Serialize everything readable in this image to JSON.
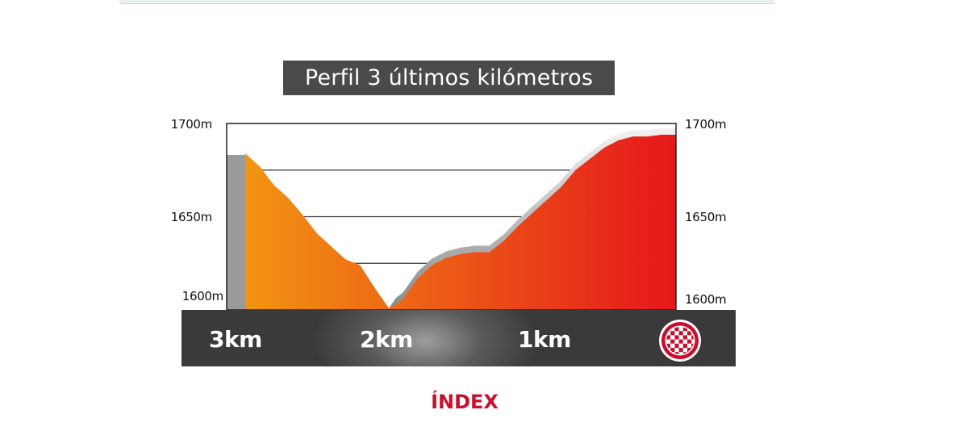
{
  "title": "Perfil 3 últimos kilómetros",
  "index_link": "ÍNDEX",
  "elevation_labels_left": [
    "1700m",
    "1650m",
    "1600m"
  ],
  "elevation_labels_right": [
    "1700m",
    "1650m",
    "1600m"
  ],
  "km_labels": [
    "3km",
    "2km",
    "1km"
  ],
  "icons": {
    "finish": "checkered-flag-icon"
  },
  "colors": {
    "profile_start": "#f29412",
    "profile_end": "#e5171b",
    "title_bg": "#4a4a4a",
    "km_bar": "#3a3a3a",
    "index": "#c8102e"
  },
  "chart_data": {
    "type": "area",
    "title": "Perfil 3 últimos kilómetros",
    "xlabel": "",
    "ylabel": "",
    "x_unit": "km to finish",
    "xlim": [
      3,
      0
    ],
    "ylim": [
      1600,
      1700
    ],
    "grid": true,
    "x_ticks": [
      "3km",
      "2km",
      "1km"
    ],
    "y_ticks": [
      "1600m",
      "1650m",
      "1700m"
    ],
    "x": [
      3.0,
      2.9,
      2.8,
      2.7,
      2.6,
      2.5,
      2.4,
      2.3,
      2.2,
      2.1,
      2.0,
      1.95,
      1.9,
      1.8,
      1.7,
      1.6,
      1.5,
      1.4,
      1.3,
      1.2,
      1.1,
      1.0,
      0.9,
      0.8,
      0.7,
      0.6,
      0.5,
      0.4,
      0.3,
      0.2,
      0.1,
      0.0
    ],
    "values": [
      1684,
      1677,
      1667,
      1660,
      1651,
      1641,
      1634,
      1627,
      1624,
      1612,
      1601,
      1603,
      1606,
      1617,
      1624,
      1628,
      1630,
      1631,
      1631,
      1637,
      1645,
      1652,
      1659,
      1666,
      1675,
      1681,
      1687,
      1691,
      1693,
      1693,
      1694,
      1694
    ]
  }
}
